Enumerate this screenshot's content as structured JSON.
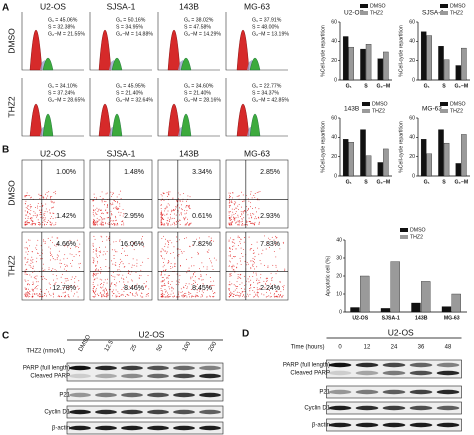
{
  "panel_labels": [
    "A",
    "B",
    "C",
    "D"
  ],
  "cell_lines": [
    "U2-OS",
    "SJSA-1",
    "143B",
    "MG-63"
  ],
  "treatments": [
    "DMSO",
    "THZ2"
  ],
  "cell_cycle": [
    [
      [
        "G₁ = 45.06%",
        "S = 32.38%",
        "G₂−M = 21.55%"
      ],
      [
        "G₁ = 50.16%",
        "S = 34.95%",
        "G₂−M = 14.88%"
      ],
      [
        "G₁ = 38.02%",
        "S = 47.58%",
        "G₂−M = 14.29%"
      ],
      [
        "G₁ = 37.91%",
        "S = 48.00%",
        "G₂−M = 13.19%"
      ]
    ],
    [
      [
        "G₁ = 34.10%",
        "S = 37.24%",
        "G₂−M = 28.65%"
      ],
      [
        "G₁ = 45.95%",
        "S = 21.40%",
        "G₂−M = 32.64%"
      ],
      [
        "G₁ = 34.60%",
        "S = 21.40%",
        "G₂−M = 28.16%"
      ],
      [
        "G₁ = 22.77%",
        "S = 34.37%",
        "G₂−M = 42.85%"
      ]
    ]
  ],
  "apoptosis_quadrants": [
    [
      [
        "1.00%",
        "1.42%"
      ],
      [
        "1.48%",
        "2.95%"
      ],
      [
        "3.34%",
        "0.61%"
      ],
      [
        "2.85%",
        "2.93%"
      ]
    ],
    [
      [
        "4.66%",
        "12.78%"
      ],
      [
        "16.06%",
        "8.46%"
      ],
      [
        "7.82%",
        "8.45%"
      ],
      [
        "7.83%",
        "2.24%"
      ]
    ]
  ],
  "chart_data": [
    {
      "type": "bar",
      "title": "U2-OS",
      "y_label": "%Cell-cycle repartition",
      "categories": [
        "G₁",
        "S",
        "G₂−M"
      ],
      "series": [
        {
          "name": "DMSO",
          "color": "#111111",
          "values": [
            45,
            32,
            22
          ]
        },
        {
          "name": "THZ2",
          "color": "#9a9a9a",
          "values": [
            34,
            37,
            29
          ]
        }
      ],
      "ylim": [
        0,
        60
      ],
      "yticks": [
        0,
        20,
        40,
        60
      ]
    },
    {
      "type": "bar",
      "title": "SJSA-1",
      "y_label": "%Cell-cycle repartition",
      "categories": [
        "G₁",
        "S",
        "G₂−M"
      ],
      "series": [
        {
          "name": "DMSO",
          "color": "#111111",
          "values": [
            50,
            35,
            15
          ]
        },
        {
          "name": "THZ2",
          "color": "#9a9a9a",
          "values": [
            46,
            21,
            33
          ]
        }
      ],
      "ylim": [
        0,
        60
      ],
      "yticks": [
        0,
        20,
        40,
        60
      ]
    },
    {
      "type": "bar",
      "title": "143B",
      "y_label": "%Cell-cycle repartition",
      "categories": [
        "G₁",
        "S",
        "G₂−M"
      ],
      "series": [
        {
          "name": "DMSO",
          "color": "#111111",
          "values": [
            38,
            48,
            14
          ]
        },
        {
          "name": "THZ2",
          "color": "#9a9a9a",
          "values": [
            35,
            21,
            28
          ]
        }
      ],
      "ylim": [
        0,
        60
      ],
      "yticks": [
        0,
        20,
        40,
        60
      ]
    },
    {
      "type": "bar",
      "title": "MG-63",
      "y_label": "%Cell-cycle repartition",
      "categories": [
        "G₁",
        "S",
        "G₂−M"
      ],
      "series": [
        {
          "name": "DMSO",
          "color": "#111111",
          "values": [
            38,
            48,
            13
          ]
        },
        {
          "name": "THZ2",
          "color": "#9a9a9a",
          "values": [
            23,
            34,
            43
          ]
        }
      ],
      "ylim": [
        0,
        60
      ],
      "yticks": [
        0,
        20,
        40,
        60
      ]
    },
    {
      "type": "bar",
      "y_label": "Apoptotic cell (%)",
      "categories": [
        "U2-OS",
        "SJSA-1",
        "143B",
        "MG-63"
      ],
      "series": [
        {
          "name": "DMSO",
          "color": "#111111",
          "values": [
            2.5,
            2,
            5,
            3
          ]
        },
        {
          "name": "THZ2",
          "color": "#9a9a9a",
          "values": [
            20,
            28,
            17,
            10
          ]
        }
      ],
      "ylim": [
        0,
        40
      ],
      "yticks": [
        0,
        10,
        20,
        30,
        40
      ]
    }
  ],
  "western_c": {
    "cell_line": "U2-OS",
    "treatment_label": "THZ2 (nmol/L)",
    "lanes": [
      "DMSO",
      "12.5",
      "25",
      "50",
      "100",
      "200"
    ],
    "rows": [
      "PARP (full length)",
      "Cleaved PARP",
      "P21",
      "Cyclin D1",
      "β-actin"
    ]
  },
  "western_d": {
    "cell_line": "U2-OS",
    "treatment_label": "Time (hours)",
    "lanes": [
      "0",
      "12",
      "24",
      "36",
      "48"
    ],
    "rows": [
      "PARP (full length)",
      "Cleaved PARP",
      "P21",
      "Cyclin D1",
      "β-actin"
    ]
  }
}
